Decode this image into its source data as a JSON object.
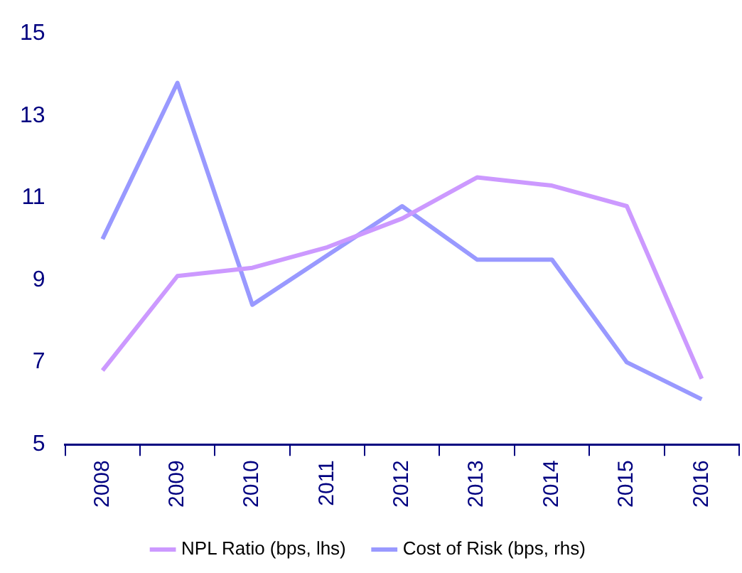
{
  "chart_data": {
    "type": "line",
    "categories": [
      "2008",
      "2009",
      "2010",
      "2011",
      "2012",
      "2013",
      "2014",
      "2015",
      "2016"
    ],
    "series": [
      {
        "name": "NPL Ratio (bps, lhs)",
        "color": "#cc99ff",
        "values": [
          6.8,
          9.1,
          9.3,
          9.8,
          10.5,
          11.5,
          11.3,
          10.8,
          6.6
        ]
      },
      {
        "name": "Cost of Risk (bps, rhs)",
        "color": "#9999ff",
        "values": [
          10.0,
          13.8,
          8.4,
          9.6,
          10.8,
          9.5,
          9.5,
          7.0,
          6.1
        ]
      }
    ],
    "ylim": [
      5,
      15
    ],
    "yticks": [
      5,
      7,
      9,
      11,
      13,
      15
    ],
    "grid": false,
    "legend": "bottom",
    "marker": "none",
    "line_style": "solid"
  }
}
